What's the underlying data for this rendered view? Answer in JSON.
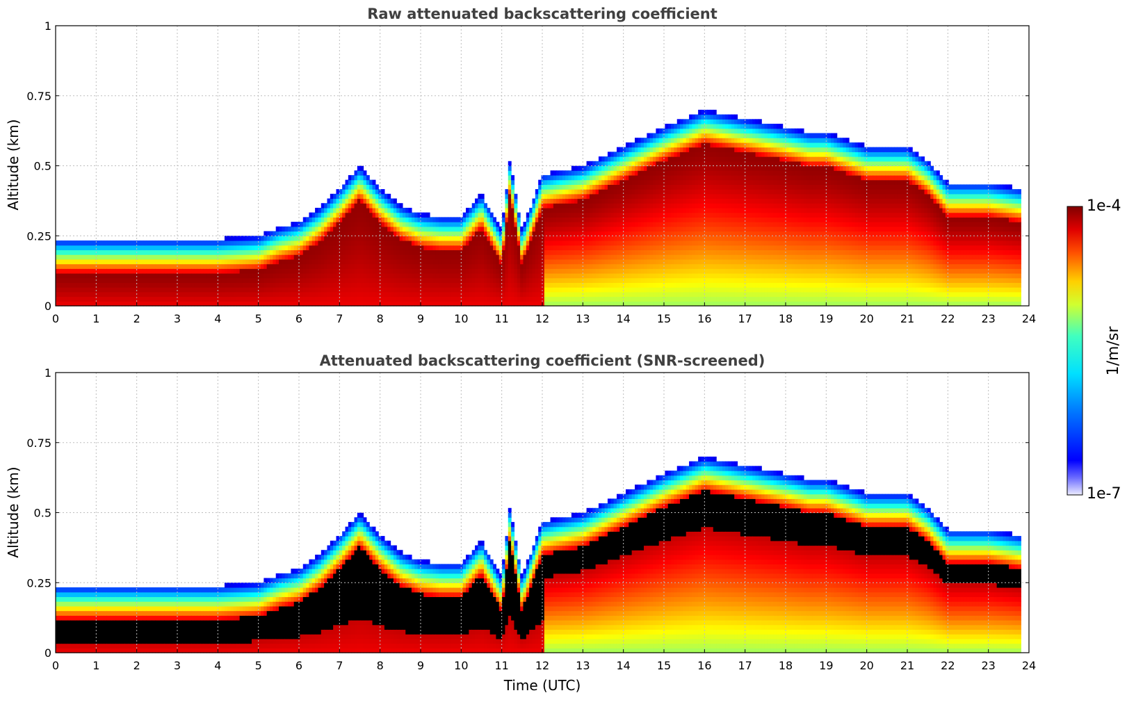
{
  "chart_data": [
    {
      "type": "heatmap",
      "title": "Raw attenuated backscattering coefficient",
      "xlabel": "",
      "ylabel": "Altitude (km)",
      "xlim": [
        0,
        24
      ],
      "ylim": [
        0,
        1
      ],
      "x_ticks": [
        "0",
        "1",
        "2",
        "3",
        "4",
        "5",
        "6",
        "7",
        "8",
        "9",
        "10",
        "11",
        "12",
        "13",
        "14",
        "15",
        "16",
        "17",
        "18",
        "19",
        "20",
        "21",
        "22",
        "23",
        "24"
      ],
      "y_ticks": [
        "0",
        "0.25",
        "0.5",
        "0.75",
        "1"
      ],
      "grid": true,
      "data_end_time": 23.8,
      "layer_top_altitude": [
        {
          "t": 0,
          "z": 0.12
        },
        {
          "t": 1,
          "z": 0.12
        },
        {
          "t": 2,
          "z": 0.12
        },
        {
          "t": 3,
          "z": 0.12
        },
        {
          "t": 4,
          "z": 0.12
        },
        {
          "t": 5,
          "z": 0.13
        },
        {
          "t": 5.5,
          "z": 0.16
        },
        {
          "t": 6,
          "z": 0.18
        },
        {
          "t": 6.5,
          "z": 0.23
        },
        {
          "t": 7,
          "z": 0.3
        },
        {
          "t": 7.5,
          "z": 0.38
        },
        {
          "t": 8,
          "z": 0.3
        },
        {
          "t": 8.5,
          "z": 0.24
        },
        {
          "t": 9,
          "z": 0.21
        },
        {
          "t": 9.5,
          "z": 0.2
        },
        {
          "t": 10,
          "z": 0.2
        },
        {
          "t": 10.5,
          "z": 0.28
        },
        {
          "t": 11,
          "z": 0.15
        },
        {
          "t": 11.2,
          "z": 0.4
        },
        {
          "t": 11.5,
          "z": 0.15
        },
        {
          "t": 12,
          "z": 0.35
        },
        {
          "t": 13,
          "z": 0.38
        },
        {
          "t": 14,
          "z": 0.45
        },
        {
          "t": 15,
          "z": 0.52
        },
        {
          "t": 16,
          "z": 0.58
        },
        {
          "t": 17,
          "z": 0.55
        },
        {
          "t": 18,
          "z": 0.52
        },
        {
          "t": 18.6,
          "z": 0.5
        },
        {
          "t": 19,
          "z": 0.5
        },
        {
          "t": 20,
          "z": 0.45
        },
        {
          "t": 21,
          "z": 0.45
        },
        {
          "t": 21.5,
          "z": 0.4
        },
        {
          "t": 22,
          "z": 0.32
        },
        {
          "t": 23,
          "z": 0.32
        },
        {
          "t": 23.8,
          "z": 0.3
        }
      ]
    },
    {
      "type": "heatmap",
      "title": "Attenuated backscattering coefficient (SNR-screened)",
      "xlabel": "Time (UTC)",
      "ylabel": "Altitude (km)",
      "xlim": [
        0,
        24
      ],
      "ylim": [
        0,
        1
      ],
      "x_ticks": [
        "0",
        "1",
        "2",
        "3",
        "4",
        "5",
        "6",
        "7",
        "8",
        "9",
        "10",
        "11",
        "12",
        "13",
        "14",
        "15",
        "16",
        "17",
        "18",
        "19",
        "20",
        "21",
        "22",
        "23",
        "24"
      ],
      "y_ticks": [
        "0",
        "0.25",
        "0.5",
        "0.75",
        "1"
      ],
      "grid": true,
      "data_end_time": 23.8,
      "layer_top_altitude": [
        {
          "t": 0,
          "z": 0.12
        },
        {
          "t": 1,
          "z": 0.12
        },
        {
          "t": 2,
          "z": 0.12
        },
        {
          "t": 3,
          "z": 0.12
        },
        {
          "t": 4,
          "z": 0.12
        },
        {
          "t": 5,
          "z": 0.13
        },
        {
          "t": 5.5,
          "z": 0.16
        },
        {
          "t": 6,
          "z": 0.18
        },
        {
          "t": 6.5,
          "z": 0.23
        },
        {
          "t": 7,
          "z": 0.3
        },
        {
          "t": 7.5,
          "z": 0.38
        },
        {
          "t": 8,
          "z": 0.3
        },
        {
          "t": 8.5,
          "z": 0.24
        },
        {
          "t": 9,
          "z": 0.21
        },
        {
          "t": 9.5,
          "z": 0.2
        },
        {
          "t": 10,
          "z": 0.2
        },
        {
          "t": 10.5,
          "z": 0.28
        },
        {
          "t": 11,
          "z": 0.15
        },
        {
          "t": 11.2,
          "z": 0.4
        },
        {
          "t": 11.5,
          "z": 0.15
        },
        {
          "t": 12,
          "z": 0.35
        },
        {
          "t": 13,
          "z": 0.38
        },
        {
          "t": 14,
          "z": 0.45
        },
        {
          "t": 15,
          "z": 0.52
        },
        {
          "t": 16,
          "z": 0.58
        },
        {
          "t": 17,
          "z": 0.55
        },
        {
          "t": 18,
          "z": 0.52
        },
        {
          "t": 18.6,
          "z": 0.5
        },
        {
          "t": 19,
          "z": 0.5
        },
        {
          "t": 20,
          "z": 0.45
        },
        {
          "t": 21,
          "z": 0.45
        },
        {
          "t": 21.5,
          "z": 0.4
        },
        {
          "t": 22,
          "z": 0.32
        },
        {
          "t": 23,
          "z": 0.32
        },
        {
          "t": 23.8,
          "z": 0.3
        }
      ]
    }
  ],
  "colorbar": {
    "label": "1/m/sr",
    "max_label": "1e-4",
    "min_label": "1e-7",
    "colormap": "jet"
  }
}
